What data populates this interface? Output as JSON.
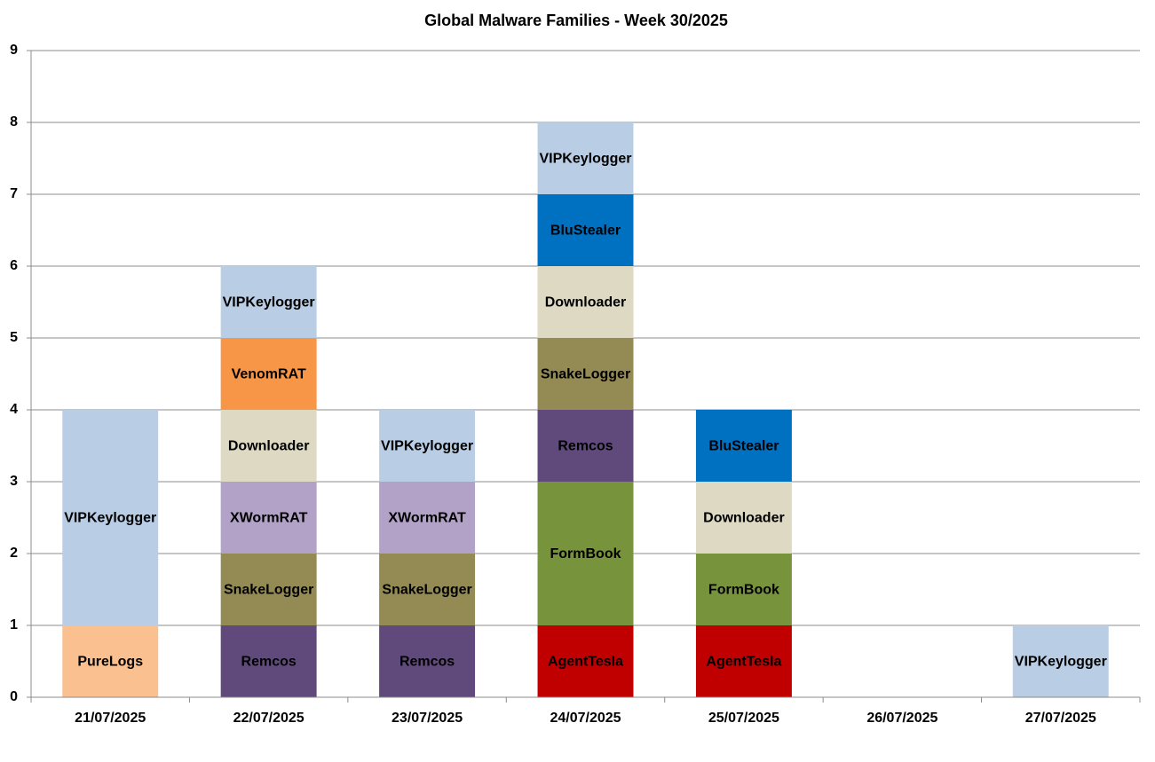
{
  "chart_data": {
    "type": "stacked_bar",
    "title": "Global Malware Families - Week 30/2025",
    "categories": [
      "21/07/2025",
      "22/07/2025",
      "23/07/2025",
      "24/07/2025",
      "25/07/2025",
      "26/07/2025",
      "27/07/2025"
    ],
    "series": [
      {
        "name": "PureLogs",
        "color": "#fac090",
        "values": [
          1,
          null,
          null,
          null,
          null,
          null,
          null
        ]
      },
      {
        "name": "AgentTesla",
        "color": "#c00000",
        "values": [
          null,
          null,
          null,
          1,
          1,
          null,
          null
        ]
      },
      {
        "name": "FormBook",
        "color": "#77933c",
        "values": [
          null,
          null,
          null,
          2,
          1,
          null,
          null
        ]
      },
      {
        "name": "Remcos",
        "color": "#604a7b",
        "values": [
          null,
          1,
          1,
          1,
          null,
          null,
          null
        ]
      },
      {
        "name": "SnakeLogger",
        "color": "#948a54",
        "values": [
          null,
          1,
          1,
          1,
          null,
          null,
          null
        ]
      },
      {
        "name": "XWormRAT",
        "color": "#b3a2c7",
        "values": [
          null,
          1,
          1,
          null,
          null,
          null,
          null
        ]
      },
      {
        "name": "Downloader",
        "color": "#ddd9c3",
        "values": [
          null,
          1,
          null,
          1,
          1,
          null,
          null
        ]
      },
      {
        "name": "VenomRAT",
        "color": "#f79646",
        "values": [
          null,
          1,
          null,
          null,
          null,
          null,
          null
        ]
      },
      {
        "name": "BluStealer",
        "color": "#0070c0",
        "values": [
          null,
          null,
          null,
          1,
          1,
          null,
          null
        ]
      },
      {
        "name": "VIPKeylogger",
        "color": "#b9cde5",
        "values": [
          3,
          1,
          1,
          1,
          null,
          null,
          1
        ]
      }
    ],
    "ylim": [
      0,
      9
    ],
    "yticks": [
      0,
      1,
      2,
      3,
      4,
      5,
      6,
      7,
      8,
      9
    ],
    "grid": true
  }
}
